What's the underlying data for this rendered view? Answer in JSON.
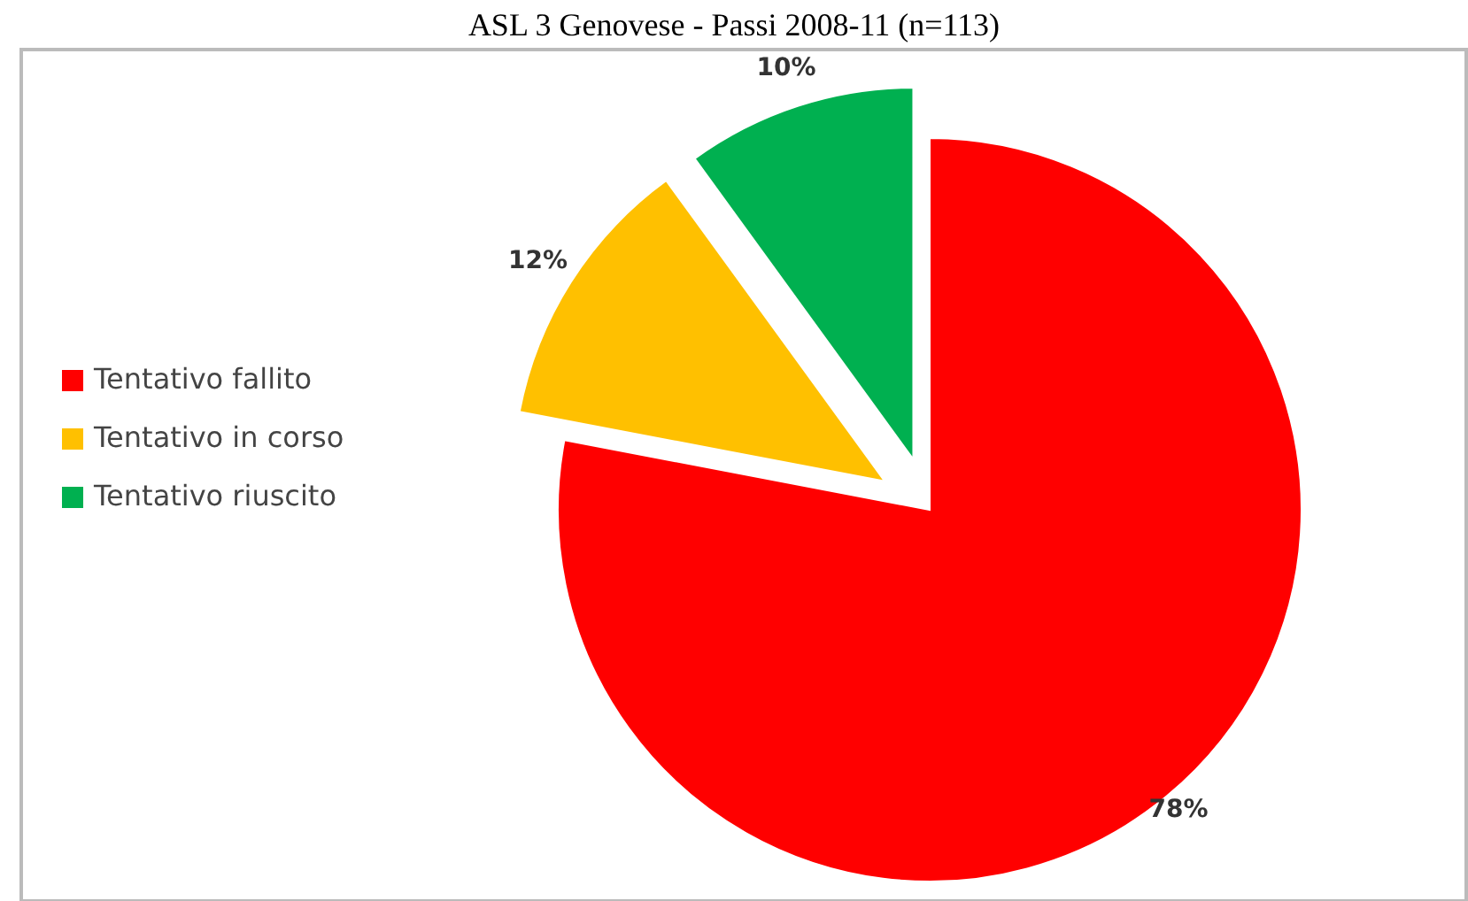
{
  "chart_data": {
    "type": "pie",
    "title": "ASL 3 Genovese - Passi 2008-11 (n=113)",
    "categories": [
      "Tentativo fallito",
      "Tentativo in corso",
      "Tentativo riuscito"
    ],
    "values": [
      78,
      12,
      10
    ],
    "colors": [
      "#ff0000",
      "#ffc000",
      "#00b050"
    ],
    "value_labels": [
      "78%",
      "12%",
      "10%"
    ],
    "legend": "left"
  }
}
